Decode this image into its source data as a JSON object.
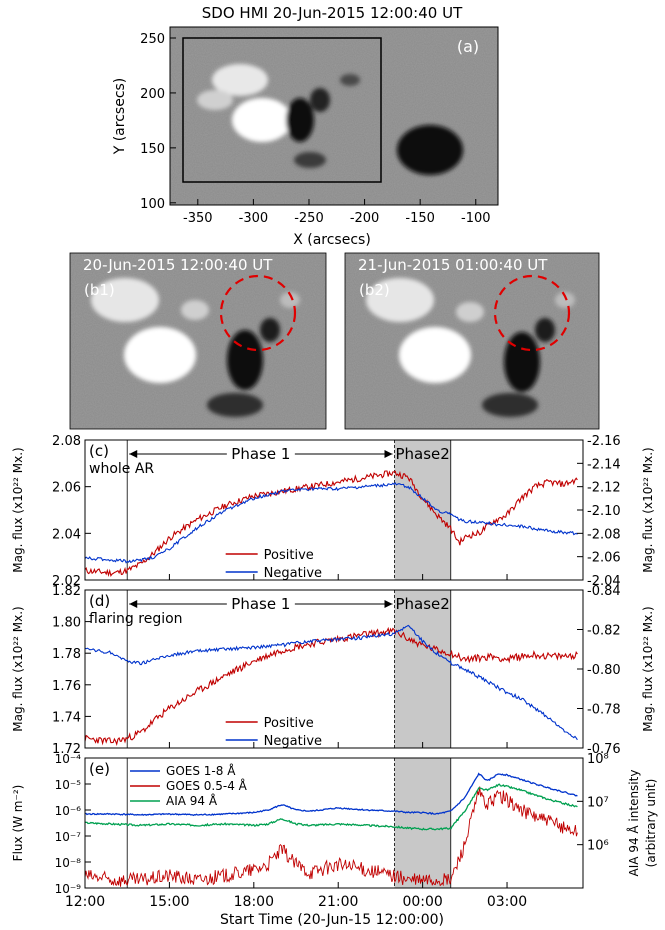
{
  "panel_a": {
    "title": "SDO HMI 20-Jun-2015 12:00:40 UT",
    "label": "(a)",
    "xlabel": "X (arcsecs)",
    "ylabel": "Y (arcsecs)",
    "xticks": [
      "-350",
      "-300",
      "-250",
      "-200",
      "-150",
      "-100"
    ],
    "yticks": [
      "250",
      "200",
      "150",
      "100"
    ]
  },
  "panel_b1": {
    "title": "20-Jun-2015 12:00:40 UT",
    "label": "(b1)"
  },
  "panel_b2": {
    "title": "21-Jun-2015 01:00:40 UT",
    "label": "(b2)"
  },
  "colors": {
    "positive": "#c00000",
    "negative": "#0033cc",
    "goes_long": "#0033cc",
    "goes_short": "#c00000",
    "aia": "#00a050",
    "phase2": "#c8c8c8"
  },
  "phases": {
    "phase1": "Phase 1",
    "phase2": "Phase2"
  },
  "legend": {
    "positive": "Positive",
    "negative": "Negative"
  },
  "xaxis": {
    "label": "Start Time (20-Jun-15 12:00:00)",
    "ticks": [
      "12:00",
      "15:00",
      "18:00",
      "21:00",
      "00:00",
      "03:00"
    ]
  },
  "chart_data": [
    {
      "type": "line",
      "panel": "(c)",
      "annotation": "whole AR",
      "ylabel_left": "Mag. flux (x10²² Mx.)",
      "ylabel_right": "Mag. flux (x10²² Mx.)",
      "ylim_left": [
        2.02,
        2.08
      ],
      "ylim_right": [
        -2.04,
        -2.16
      ],
      "yticks_left": [
        "2.02",
        "2.04",
        "2.06",
        "2.08"
      ],
      "yticks_right": [
        "-2.04",
        "-2.06",
        "-2.08",
        "-2.10",
        "-2.12",
        "-2.14",
        "-2.16"
      ],
      "x_hours": [
        12,
        13,
        13.5,
        14,
        14.5,
        15,
        16,
        17,
        18,
        19,
        20,
        21,
        22,
        23,
        23.5,
        24,
        24.5,
        25,
        25.3,
        25.6,
        26,
        26.5,
        27,
        27.5,
        28,
        28.5,
        29,
        29.5
      ],
      "series": [
        {
          "name": "Positive",
          "values": [
            2.024,
            2.023,
            2.024,
            2.027,
            2.032,
            2.038,
            2.046,
            2.052,
            2.056,
            2.058,
            2.06,
            2.062,
            2.064,
            2.066,
            2.064,
            2.055,
            2.048,
            2.042,
            2.036,
            2.039,
            2.04,
            2.045,
            2.048,
            2.055,
            2.06,
            2.062,
            2.061,
            2.063
          ]
        },
        {
          "name": "Negative",
          "values": [
            -2.059,
            -2.057,
            -2.056,
            -2.057,
            -2.06,
            -2.067,
            -2.085,
            -2.1,
            -2.11,
            -2.116,
            -2.118,
            -2.118,
            -2.12,
            -2.122,
            -2.12,
            -2.11,
            -2.1,
            -2.096,
            -2.092,
            -2.09,
            -2.09,
            -2.088,
            -2.087,
            -2.086,
            -2.084,
            -2.082,
            -2.081,
            -2.08
          ]
        }
      ]
    },
    {
      "type": "line",
      "panel": "(d)",
      "annotation": "flaring region",
      "ylabel_left": "Mag. flux (x10²² Mx.)",
      "ylabel_right": "Mag. flux (x10²² Mx.)",
      "ylim_left": [
        1.72,
        1.82
      ],
      "ylim_right": [
        -0.76,
        -0.84
      ],
      "yticks_left": [
        "1.72",
        "1.74",
        "1.76",
        "1.78",
        "1.80",
        "1.82"
      ],
      "yticks_right": [
        "-0.76",
        "-0.78",
        "-0.80",
        "-0.82",
        "-0.84"
      ],
      "x_hours": [
        12,
        13,
        13.5,
        14,
        14.5,
        15,
        16,
        17,
        18,
        19,
        20,
        21,
        22,
        23,
        23.5,
        24,
        24.5,
        25,
        25.5,
        26,
        26.5,
        27,
        27.5,
        28,
        28.5,
        29,
        29.5
      ],
      "series": [
        {
          "name": "Positive",
          "values": [
            1.726,
            1.724,
            1.726,
            1.73,
            1.738,
            1.745,
            1.756,
            1.766,
            1.775,
            1.782,
            1.786,
            1.789,
            1.792,
            1.794,
            1.789,
            1.785,
            1.782,
            1.78,
            1.776,
            1.777,
            1.778,
            1.776,
            1.778,
            1.779,
            1.778,
            1.778,
            1.779
          ]
        },
        {
          "name": "Negative",
          "values": [
            -0.81,
            -0.808,
            -0.804,
            -0.803,
            -0.805,
            -0.807,
            -0.809,
            -0.81,
            -0.811,
            -0.812,
            -0.814,
            -0.815,
            -0.816,
            -0.818,
            -0.822,
            -0.814,
            -0.808,
            -0.803,
            -0.8,
            -0.796,
            -0.792,
            -0.788,
            -0.785,
            -0.78,
            -0.775,
            -0.769,
            -0.765
          ]
        }
      ]
    },
    {
      "type": "line",
      "panel": "(e)",
      "ylabel_left": "Flux (W m⁻²)",
      "ylabel_right_1": "AIA 94 Å intensity",
      "ylabel_right_2": "(arbitrary unit)",
      "yscale": "log",
      "ylim_left": [
        1e-09,
        0.0001
      ],
      "ylim_right": [
        100000.0,
        100000000.0
      ],
      "yticks_left": [
        "10⁻⁹",
        "10⁻⁸",
        "10⁻⁷",
        "10⁻⁶",
        "10⁻⁵",
        "10⁻⁴"
      ],
      "yticks_right": [
        "10⁶",
        "10⁷",
        "10⁸"
      ],
      "x_hours": [
        12,
        13,
        14,
        15,
        16,
        17,
        18,
        18.5,
        19,
        19.5,
        20,
        21,
        22,
        23,
        23.5,
        24,
        24.5,
        25,
        25.5,
        26,
        26.3,
        26.7,
        27,
        27.5,
        28,
        28.5,
        29,
        29.5
      ],
      "series": [
        {
          "name": "GOES 1-8 Å",
          "values": [
            7e-07,
            7e-07,
            6.5e-07,
            7e-07,
            6.5e-07,
            7e-07,
            8e-07,
            1e-06,
            1.6e-06,
            1e-06,
            9e-07,
            1.2e-06,
            1e-06,
            9e-07,
            8e-07,
            8e-07,
            7e-07,
            9e-07,
            3e-06,
            2.5e-05,
            1.3e-05,
            2.5e-05,
            2.2e-05,
            1.5e-05,
            1e-05,
            7e-06,
            5e-06,
            3.5e-06
          ]
        },
        {
          "name": "GOES 0.5-4 Å",
          "values": [
            3e-09,
            2e-09,
            2e-09,
            3e-09,
            2e-09,
            3e-09,
            5e-09,
            8e-09,
            3e-08,
            8e-09,
            4e-09,
            8e-09,
            5e-09,
            3e-09,
            2e-09,
            2e-09,
            2e-09,
            2e-09,
            5e-08,
            5e-06,
            1.5e-06,
            4e-06,
            2.5e-06,
            1e-06,
            6e-07,
            3.5e-07,
            2.2e-07,
            1.5e-07
          ]
        },
        {
          "name": "AIA 94 Å",
          "values": [
            3200000.0,
            3000000.0,
            2800000.0,
            3000000.0,
            2800000.0,
            3000000.0,
            2800000.0,
            3000000.0,
            4000000.0,
            3000000.0,
            2800000.0,
            3000000.0,
            2800000.0,
            2600000.0,
            2400000.0,
            2300000.0,
            2300000.0,
            2400000.0,
            6000000.0,
            20000000.0,
            18000000.0,
            24000000.0,
            22000000.0,
            18000000.0,
            14000000.0,
            11000000.0,
            9000000.0,
            7500000.0
          ]
        }
      ]
    }
  ]
}
